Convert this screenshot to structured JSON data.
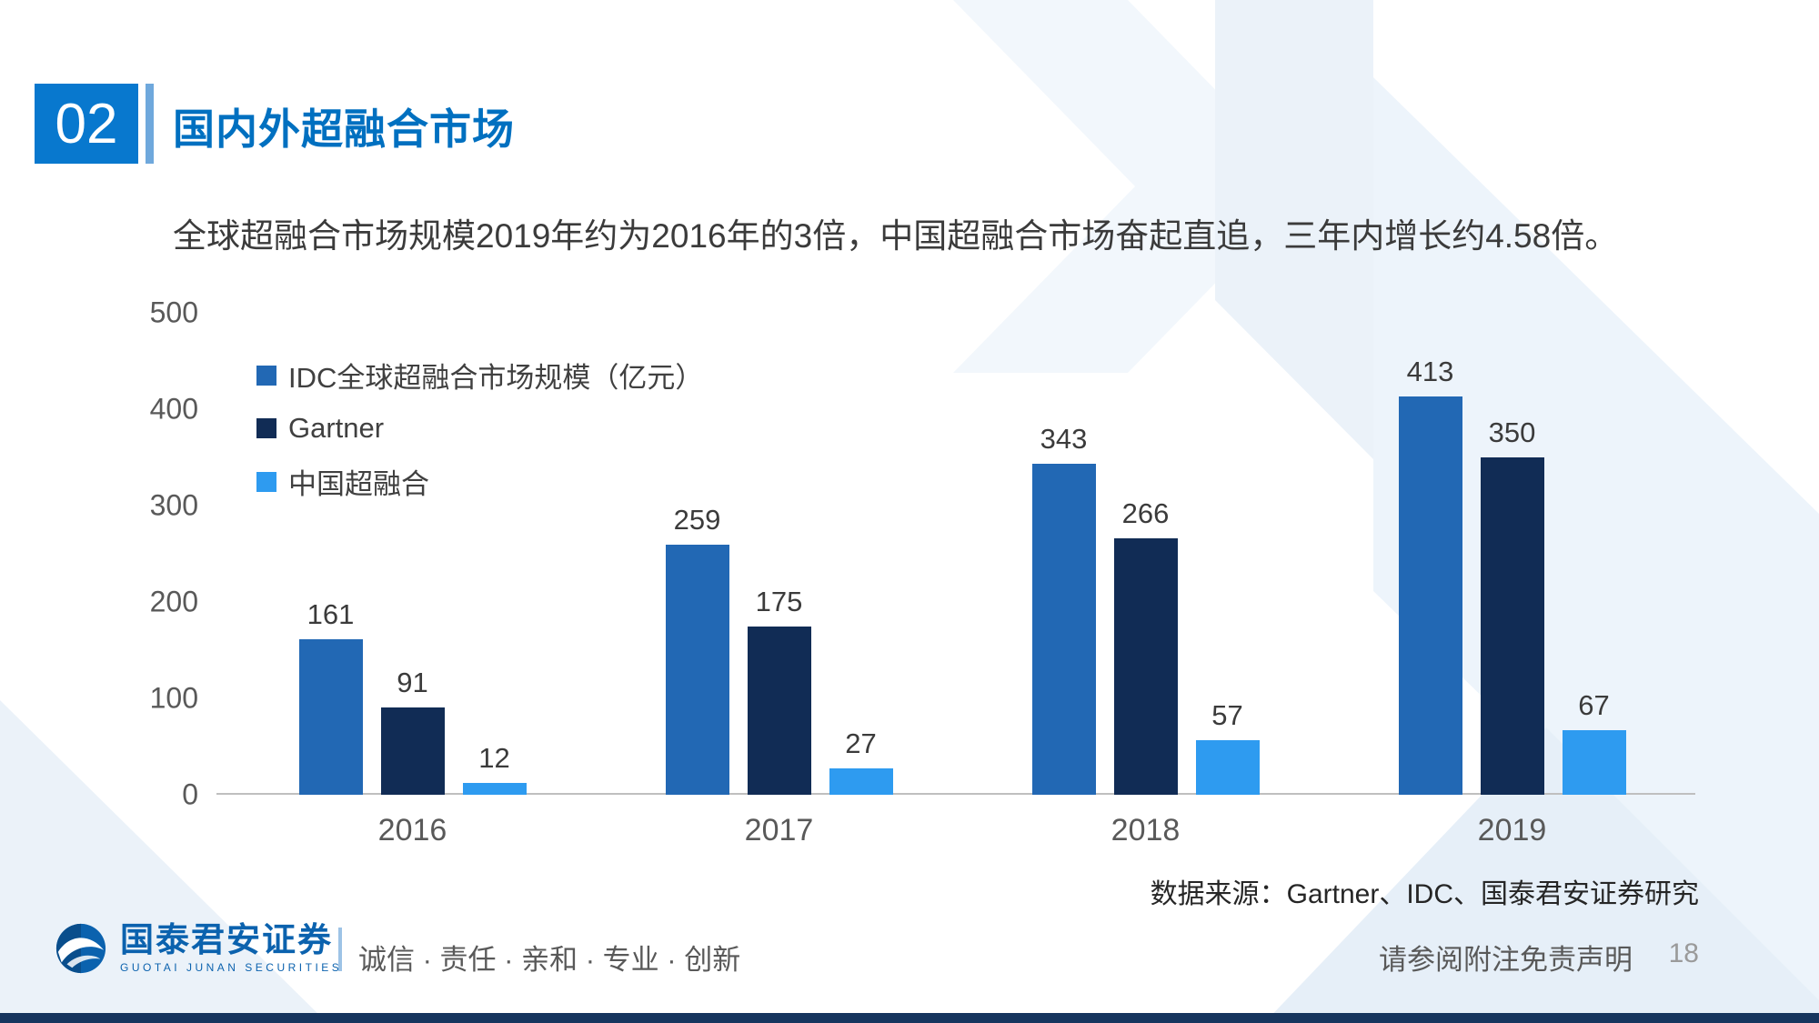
{
  "header": {
    "section_number": "02",
    "title": "国内外超融合市场"
  },
  "intro": {
    "text": "全球超融合市场规模2019年约为2016年的3倍，中国超融合市场奋起直追，三年内增长约4.58倍。"
  },
  "chart_data": {
    "type": "bar",
    "categories": [
      "2016",
      "2017",
      "2018",
      "2019"
    ],
    "series": [
      {
        "name": "IDC全球超融合市场规模（亿元）",
        "color": "#2268B4",
        "values": [
          161,
          259,
          343,
          413
        ]
      },
      {
        "name": "Gartner",
        "color": "#112C55",
        "values": [
          91,
          175,
          266,
          350
        ]
      },
      {
        "name": "中国超融合",
        "color": "#2E9BF0",
        "values": [
          12,
          27,
          57,
          67
        ]
      }
    ],
    "title": "",
    "xlabel": "",
    "ylabel": "",
    "ylim": [
      0,
      500
    ],
    "yticks": [
      0,
      100,
      200,
      300,
      400,
      500
    ],
    "grid": false,
    "legend_position": "top-left-inside",
    "data_labels": true
  },
  "source": {
    "text": "数据来源：Gartner、IDC、国泰君安证券研究"
  },
  "footer": {
    "logo_text": "国泰君安证券",
    "logo_subtext": "GUOTAI JUNAN SECURITIES",
    "slogan": "诚信 · 责任 · 亲和 · 专业 · 创新",
    "disclaimer": "请参阅附注免责声明",
    "page_number": "18"
  },
  "colors": {
    "accent_blue": "#0878CE",
    "title_blue": "#0070C0",
    "bottom_bar": "#16355E",
    "background_shape": "#EBF2F9"
  }
}
